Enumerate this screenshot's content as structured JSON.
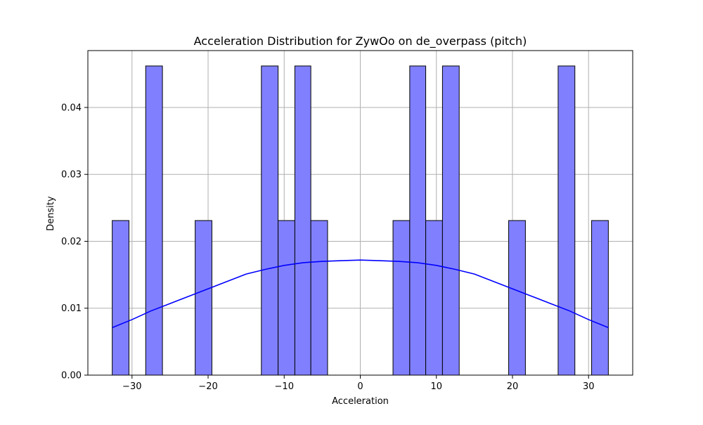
{
  "chart_data": {
    "type": "bar",
    "title": "Acceleration Distribution for ZywOo on de_overpass (pitch)",
    "xlabel": "Acceleration",
    "ylabel": "Density",
    "xlim": [
      -35.8,
      35.8
    ],
    "ylim": [
      0,
      0.0485
    ],
    "xticks": [
      -30,
      -20,
      -10,
      0,
      10,
      20,
      30
    ],
    "yticks": [
      0.0,
      0.01,
      0.02,
      0.03,
      0.04
    ],
    "xtick_labels": [
      "−30",
      "−20",
      "−10",
      "0",
      "10",
      "20",
      "30"
    ],
    "ytick_labels": [
      "0.00",
      "0.01",
      "0.02",
      "0.03",
      "0.04"
    ],
    "grid": true,
    "bins": [
      {
        "x0": -32.6,
        "x1": -30.4,
        "value": 0.0231
      },
      {
        "x0": -28.2,
        "x1": -26.0,
        "value": 0.0462
      },
      {
        "x0": -21.7,
        "x1": -19.5,
        "value": 0.0231
      },
      {
        "x0": -13.0,
        "x1": -10.8,
        "value": 0.0462
      },
      {
        "x0": -10.8,
        "x1": -8.6,
        "value": 0.0231
      },
      {
        "x0": -8.6,
        "x1": -6.5,
        "value": 0.0462
      },
      {
        "x0": -6.5,
        "x1": -4.3,
        "value": 0.0231
      },
      {
        "x0": 4.3,
        "x1": 6.5,
        "value": 0.0231
      },
      {
        "x0": 6.5,
        "x1": 8.6,
        "value": 0.0462
      },
      {
        "x0": 8.6,
        "x1": 10.8,
        "value": 0.0231
      },
      {
        "x0": 10.8,
        "x1": 13.0,
        "value": 0.0462
      },
      {
        "x0": 19.5,
        "x1": 21.7,
        "value": 0.0231
      },
      {
        "x0": 26.0,
        "x1": 28.2,
        "value": 0.0462
      },
      {
        "x0": 30.4,
        "x1": 32.6,
        "value": 0.0231
      }
    ],
    "kde": {
      "x": [
        -32.6,
        -30,
        -27.5,
        -25,
        -22.5,
        -20,
        -17.5,
        -15,
        -12.5,
        -10,
        -7.5,
        -5,
        -2.5,
        0,
        2.5,
        5,
        7.5,
        10,
        12.5,
        15,
        17.5,
        20,
        22.5,
        25,
        27.5,
        30,
        32.6
      ],
      "y": [
        0.0071,
        0.0083,
        0.0096,
        0.0107,
        0.0118,
        0.0129,
        0.014,
        0.0151,
        0.0158,
        0.0164,
        0.0168,
        0.017,
        0.0171,
        0.0172,
        0.0171,
        0.017,
        0.0168,
        0.0164,
        0.0158,
        0.0151,
        0.014,
        0.0129,
        0.0118,
        0.0107,
        0.0096,
        0.0083,
        0.0071
      ]
    },
    "colors": {
      "bar_fill": "#8080ff",
      "bar_edge": "#000000",
      "kde_line": "#0000ff",
      "grid": "#b0b0b0"
    }
  }
}
